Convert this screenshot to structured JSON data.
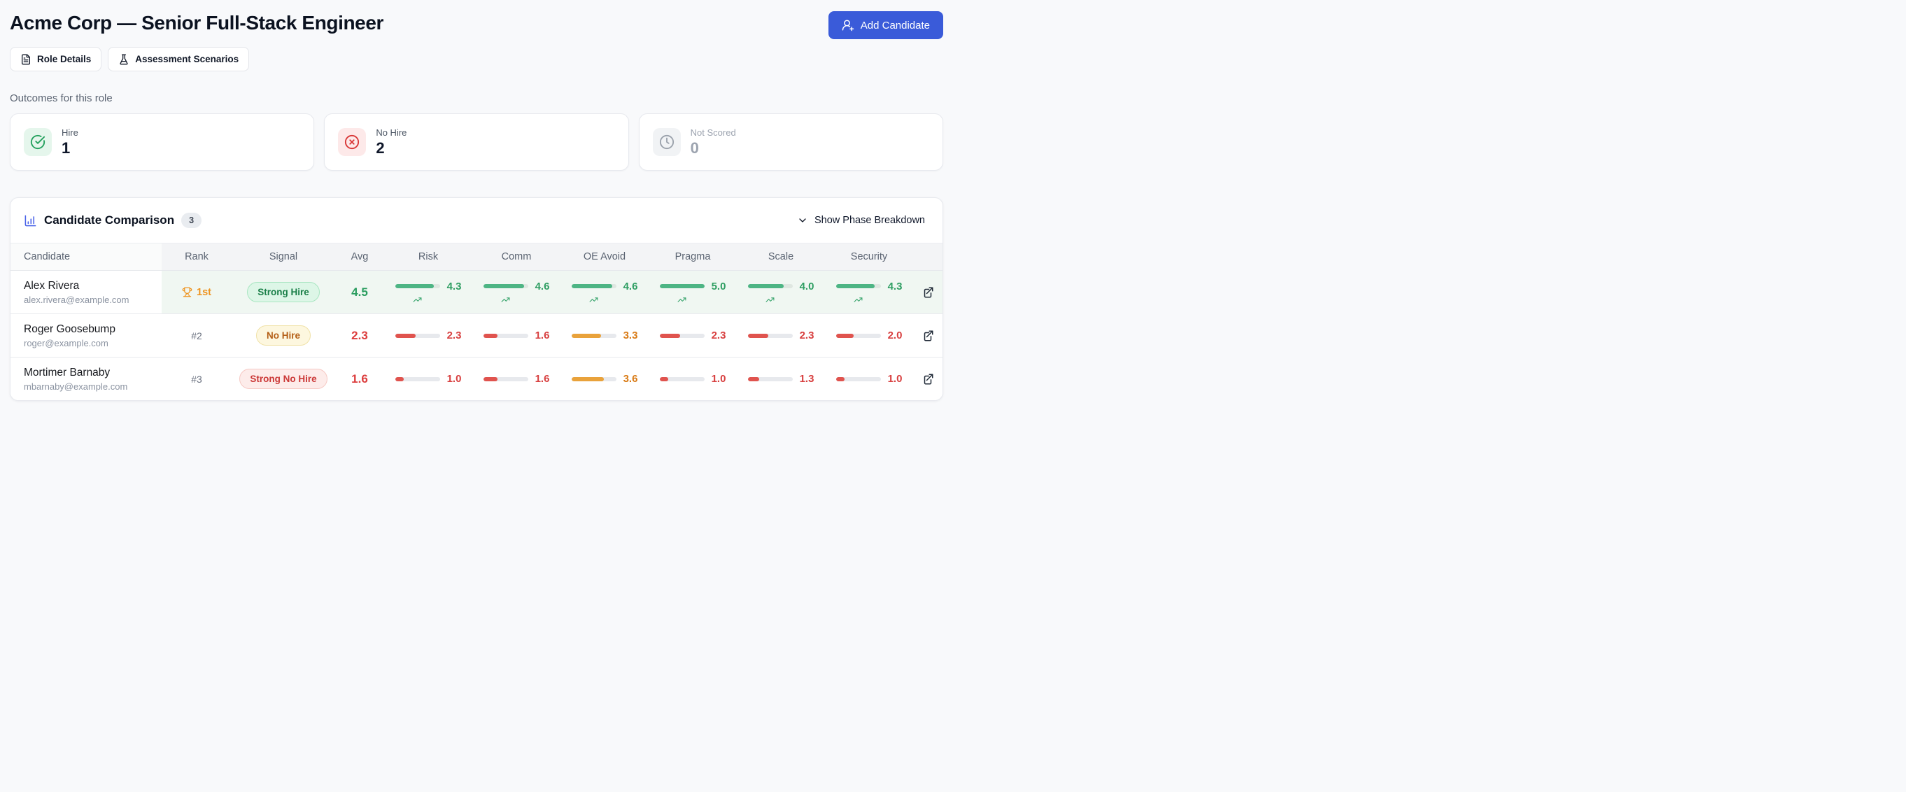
{
  "colors": {
    "accent": "#3a5bd9",
    "success": "#2e9e62",
    "danger": "#dc3d3d",
    "warning": "#d97b16"
  },
  "header": {
    "title": "Acme Corp — Senior Full-Stack Engineer",
    "actions": {
      "add_candidate": "Add Candidate"
    },
    "nav": [
      {
        "label": "Role Details"
      },
      {
        "label": "Assessment Scenarios"
      }
    ]
  },
  "outcomes": {
    "heading": "Outcomes for this role",
    "cards": [
      {
        "label": "Hire",
        "value": "1",
        "tone": "success"
      },
      {
        "label": "No Hire",
        "value": "2",
        "tone": "danger"
      },
      {
        "label": "Not Scored",
        "value": "0",
        "tone": "muted"
      }
    ]
  },
  "comparison": {
    "title": "Candidate Comparison",
    "count": "3",
    "toggle_label": "Show Phase Breakdown",
    "columns": [
      "Candidate",
      "Rank",
      "Signal",
      "Avg",
      "Risk",
      "Comm",
      "OE Avoid",
      "Pragma",
      "Scale",
      "Security"
    ],
    "score_scale_max": 5,
    "rows": [
      {
        "name": "Alex Rivera",
        "email": "alex.rivera@example.com",
        "rank": "1st",
        "rank_trophy": true,
        "highlight": true,
        "signal": "Strong Hire",
        "signal_tone": "success",
        "avg": "4.5",
        "avg_tone": "success",
        "metrics": [
          {
            "value": 4.3,
            "tone": "green",
            "trend": "up"
          },
          {
            "value": 4.6,
            "tone": "green",
            "trend": "up"
          },
          {
            "value": 4.6,
            "tone": "green",
            "trend": "up"
          },
          {
            "value": 5.0,
            "tone": "green",
            "trend": "up"
          },
          {
            "value": 4.0,
            "tone": "green",
            "trend": "up"
          },
          {
            "value": 4.3,
            "tone": "green",
            "trend": "up"
          }
        ]
      },
      {
        "name": "Roger Goosebump",
        "email": "roger@example.com",
        "rank": "#2",
        "rank_trophy": false,
        "highlight": false,
        "signal": "No Hire",
        "signal_tone": "warning",
        "avg": "2.3",
        "avg_tone": "danger",
        "metrics": [
          {
            "value": 2.3,
            "tone": "red",
            "trend": null
          },
          {
            "value": 1.6,
            "tone": "red",
            "trend": null
          },
          {
            "value": 3.3,
            "tone": "orange",
            "trend": null
          },
          {
            "value": 2.3,
            "tone": "red",
            "trend": null
          },
          {
            "value": 2.3,
            "tone": "red",
            "trend": null
          },
          {
            "value": 2.0,
            "tone": "red",
            "trend": null
          }
        ]
      },
      {
        "name": "Mortimer Barnaby",
        "email": "mbarnaby@example.com",
        "rank": "#3",
        "rank_trophy": false,
        "highlight": false,
        "signal": "Strong No Hire",
        "signal_tone": "danger",
        "avg": "1.6",
        "avg_tone": "danger",
        "metrics": [
          {
            "value": 1.0,
            "tone": "red",
            "trend": null
          },
          {
            "value": 1.6,
            "tone": "red",
            "trend": null
          },
          {
            "value": 3.6,
            "tone": "orange",
            "trend": null
          },
          {
            "value": 1.0,
            "tone": "red",
            "trend": null
          },
          {
            "value": 1.3,
            "tone": "red",
            "trend": null
          },
          {
            "value": 1.0,
            "tone": "red",
            "trend": null
          }
        ]
      }
    ]
  }
}
